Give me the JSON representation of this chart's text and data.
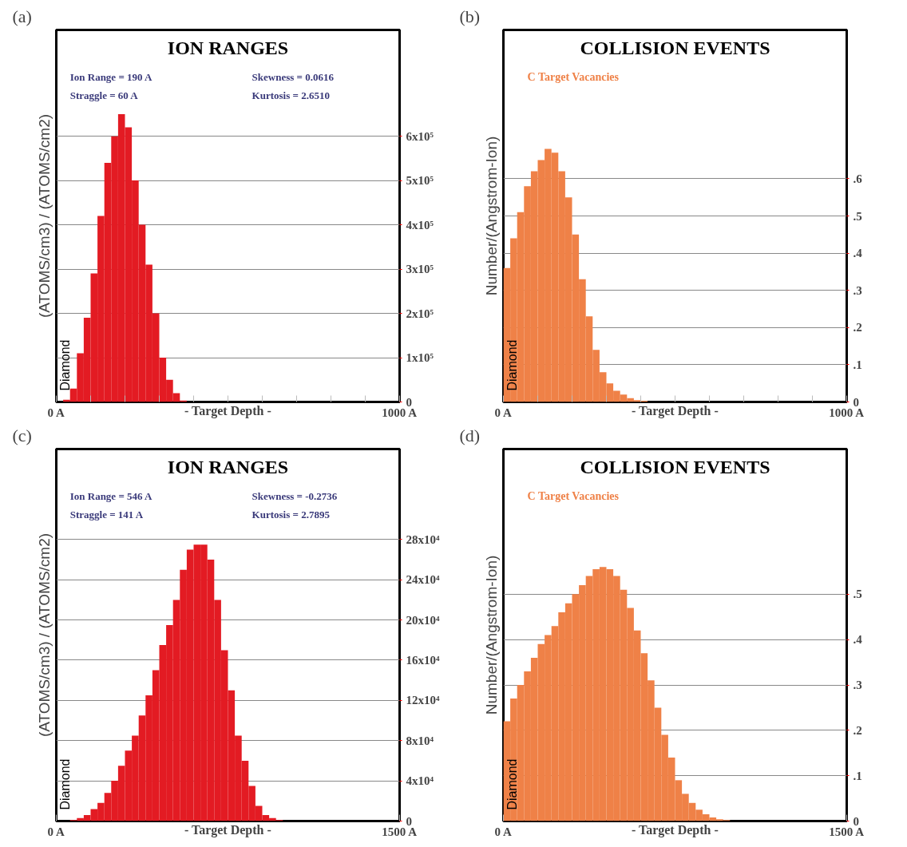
{
  "chart_data": [
    {
      "type": "histogram",
      "subtitle": "(a)",
      "title": "ION RANGES",
      "xlabel": "- Target Depth -",
      "ylabel": "(ATOMS/cm3) / (ATOMS/cm2)",
      "color": "#e31b23",
      "grid": "y",
      "bins": [
        0,
        20,
        40,
        60,
        80,
        100,
        120,
        140,
        160,
        180,
        200,
        220,
        240,
        260,
        280,
        300,
        320,
        340,
        360,
        380,
        400,
        420,
        440,
        460,
        480,
        500,
        520,
        540,
        560,
        580,
        600,
        620,
        640,
        660,
        680,
        700,
        720,
        740,
        760,
        780,
        800,
        820,
        840,
        860,
        880,
        900,
        920,
        940,
        960,
        980,
        1000
      ],
      "values": [
        0,
        5000,
        30000,
        110000,
        190000,
        290000,
        420000,
        540000,
        600000,
        650000,
        620000,
        500000,
        400000,
        310000,
        200000,
        100000,
        50000,
        20000,
        3000,
        0,
        0,
        0,
        0,
        0,
        0,
        0,
        0,
        0,
        0,
        0,
        0,
        0,
        0,
        0,
        0,
        0,
        0,
        0,
        0,
        0,
        0,
        0,
        0,
        0,
        0,
        0,
        0,
        0,
        0,
        0
      ],
      "xlim": [
        0,
        1000
      ],
      "ylim": [
        0,
        840000
      ],
      "xticks": [
        {
          "value": 0,
          "label": "0 A"
        },
        {
          "value": 100,
          "label": null
        },
        {
          "value": 200,
          "label": null
        },
        {
          "value": 300,
          "label": null
        },
        {
          "value": 400,
          "label": null
        },
        {
          "value": 500,
          "label": null
        },
        {
          "value": 600,
          "label": null
        },
        {
          "value": 700,
          "label": null
        },
        {
          "value": 800,
          "label": null
        },
        {
          "value": 900,
          "label": null
        },
        {
          "value": 1000,
          "label": "1000 A"
        }
      ],
      "yticks": [
        0,
        {
          "value": 100000,
          "label": "1x10⁵"
        },
        {
          "value": 200000,
          "label": "2x10⁵"
        },
        {
          "value": 300000,
          "label": "3x10⁵"
        },
        {
          "value": 400000,
          "label": "4x10⁵"
        },
        {
          "value": 500000,
          "label": "5x10⁵"
        },
        {
          "value": 600000,
          "label": "6x10⁵"
        }
      ],
      "annotations": [
        "Ion Range   =  190 A",
        "Straggle      =  60 A",
        "Skewness    = 0.0616",
        "Kurtosis       = 2.6510",
        "Diamond"
      ]
    },
    {
      "type": "histogram",
      "subtitle": "(b)",
      "title": "COLLISION EVENTS",
      "xlabel": "- Target Depth -",
      "ylabel": "Number/(Angstrom-Ion)",
      "grid": "y",
      "bins": [
        0,
        20,
        40,
        60,
        80,
        100,
        120,
        140,
        160,
        180,
        200,
        220,
        240,
        260,
        280,
        300,
        320,
        340,
        360,
        380,
        400,
        420,
        440,
        460,
        480,
        500,
        520,
        540,
        560,
        580,
        600,
        620,
        640,
        660,
        680,
        700,
        720,
        740,
        760,
        780,
        800,
        820,
        840,
        860,
        880,
        900,
        920,
        940,
        960,
        980,
        1000
      ],
      "series": [
        {
          "name": "C Target Vacancies",
          "color": "#ef8147",
          "values": [
            0.36,
            0.44,
            0.51,
            0.58,
            0.62,
            0.65,
            0.68,
            0.67,
            0.62,
            0.55,
            0.45,
            0.33,
            0.23,
            0.14,
            0.08,
            0.05,
            0.03,
            0.02,
            0.01,
            0.005,
            0.003,
            0,
            0,
            0,
            0,
            0,
            0,
            0,
            0,
            0,
            0,
            0,
            0,
            0,
            0,
            0,
            0,
            0,
            0,
            0,
            0,
            0,
            0,
            0,
            0,
            0,
            0,
            0,
            0,
            0
          ]
        }
      ],
      "xlim": [
        0,
        1000
      ],
      "ylim": [
        0,
        1.0
      ],
      "xticks": [
        {
          "value": 0,
          "label": "0 A"
        },
        {
          "value": 100,
          "label": null
        },
        {
          "value": 200,
          "label": null
        },
        {
          "value": 300,
          "label": null
        },
        {
          "value": 400,
          "label": null
        },
        {
          "value": 500,
          "label": null
        },
        {
          "value": 600,
          "label": null
        },
        {
          "value": 700,
          "label": null
        },
        {
          "value": 800,
          "label": null
        },
        {
          "value": 900,
          "label": null
        },
        {
          "value": 1000,
          "label": "1000 A"
        }
      ],
      "yticks": [
        0,
        {
          "value": 0.1,
          "label": ".1"
        },
        {
          "value": 0.2,
          "label": ".2"
        },
        {
          "value": 0.3,
          "label": ".3"
        },
        {
          "value": 0.4,
          "label": ".4"
        },
        {
          "value": 0.5,
          "label": ".5"
        },
        {
          "value": 0.6,
          "label": ".6"
        }
      ],
      "annotations": [
        "Diamond"
      ]
    },
    {
      "type": "histogram",
      "subtitle": "(c)",
      "title": "ION RANGES",
      "xlabel": "- Target Depth -",
      "ylabel": "(ATOMS/cm3) / (ATOMS/cm2)",
      "color": "#e31b23",
      "grid": "y",
      "bins": [
        0,
        30,
        60,
        90,
        120,
        150,
        180,
        210,
        240,
        270,
        300,
        330,
        360,
        390,
        420,
        450,
        480,
        510,
        540,
        570,
        600,
        630,
        660,
        690,
        720,
        750,
        780,
        810,
        840,
        870,
        900,
        930,
        960,
        990,
        1020,
        1050,
        1080,
        1110,
        1140,
        1170,
        1200,
        1230,
        1260,
        1290,
        1320,
        1350,
        1380,
        1410,
        1440,
        1470,
        1500
      ],
      "values": [
        0,
        0,
        1000,
        3000,
        6000,
        12000,
        18000,
        28000,
        40000,
        55000,
        70000,
        85000,
        105000,
        125000,
        150000,
        175000,
        195000,
        220000,
        250000,
        270000,
        275000,
        275000,
        260000,
        220000,
        170000,
        130000,
        85000,
        60000,
        35000,
        15000,
        6000,
        3000,
        1000,
        0,
        0,
        0,
        0,
        0,
        0,
        0,
        0,
        0,
        0,
        0,
        0,
        0,
        0,
        0,
        0,
        0
      ],
      "xlim": [
        0,
        1500
      ],
      "ylim": [
        0,
        370000
      ],
      "xticks": [
        {
          "value": 0,
          "label": "0 A"
        },
        {
          "value": 1500,
          "label": "1500 A"
        }
      ],
      "yticks": [
        0,
        {
          "value": 40000,
          "label": "4x10⁴"
        },
        {
          "value": 80000,
          "label": "8x10⁴"
        },
        {
          "value": 120000,
          "label": "12x10⁴"
        },
        {
          "value": 160000,
          "label": "16x10⁴"
        },
        {
          "value": 200000,
          "label": "20x10⁴"
        },
        {
          "value": 240000,
          "label": "24x10⁴"
        },
        {
          "value": 280000,
          "label": "28x10⁴"
        }
      ],
      "annotations": [
        "Ion Range   =  546 A",
        "Straggle      =  141 A",
        "Skewness    = -0.2736",
        "Kurtosis       = 2.7895",
        "Diamond"
      ]
    },
    {
      "type": "histogram",
      "subtitle": "(d)",
      "title": "COLLISION EVENTS",
      "xlabel": "- Target Depth -",
      "ylabel": "Number/(Angstrom-Ion)",
      "grid": "y",
      "bins": [
        0,
        30,
        60,
        90,
        120,
        150,
        180,
        210,
        240,
        270,
        300,
        330,
        360,
        390,
        420,
        450,
        480,
        510,
        540,
        570,
        600,
        630,
        660,
        690,
        720,
        750,
        780,
        810,
        840,
        870,
        900,
        930,
        960,
        990,
        1020,
        1050,
        1080,
        1110,
        1140,
        1170,
        1200,
        1230,
        1260,
        1290,
        1320,
        1350,
        1380,
        1410,
        1440,
        1470,
        1500
      ],
      "series": [
        {
          "name": "C Target Vacancies",
          "color": "#ef8147",
          "values": [
            0.22,
            0.27,
            0.3,
            0.33,
            0.36,
            0.39,
            0.41,
            0.43,
            0.46,
            0.48,
            0.5,
            0.52,
            0.54,
            0.555,
            0.56,
            0.555,
            0.54,
            0.51,
            0.47,
            0.42,
            0.37,
            0.31,
            0.25,
            0.19,
            0.14,
            0.09,
            0.06,
            0.04,
            0.025,
            0.015,
            0.008,
            0.004,
            0.002,
            0,
            0,
            0,
            0,
            0,
            0,
            0,
            0,
            0,
            0,
            0,
            0,
            0,
            0,
            0,
            0,
            0
          ]
        }
      ],
      "xlim": [
        0,
        1500
      ],
      "ylim": [
        0,
        0.82
      ],
      "xticks": [
        {
          "value": 0,
          "label": "0 A"
        },
        {
          "value": 1500,
          "label": "1500 A"
        }
      ],
      "yticks": [
        0,
        {
          "value": 0.1,
          "label": ".1"
        },
        {
          "value": 0.2,
          "label": ".2"
        },
        {
          "value": 0.3,
          "label": ".3"
        },
        {
          "value": 0.4,
          "label": ".4"
        },
        {
          "value": 0.5,
          "label": ".5"
        }
      ],
      "annotations": [
        "Diamond"
      ]
    }
  ]
}
